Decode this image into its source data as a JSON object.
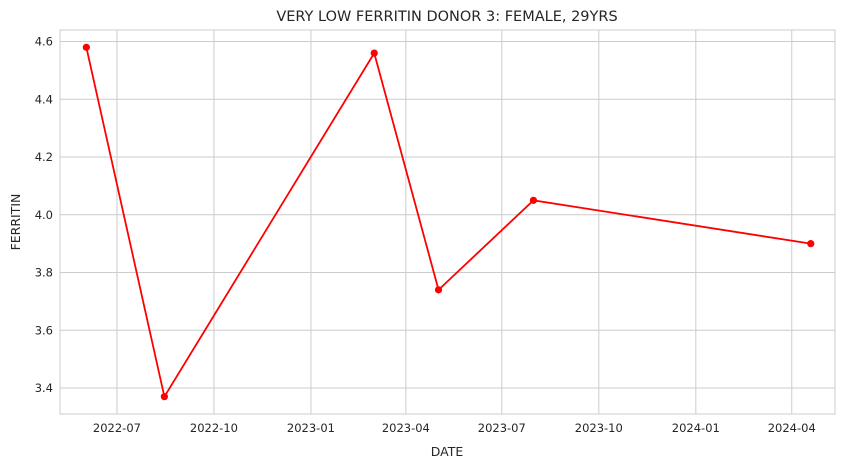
{
  "chart_data": {
    "type": "line",
    "title": "VERY LOW FERRITIN DONOR 3:   FEMALE, 29YRS",
    "xlabel": "DATE",
    "ylabel": "FERRITIN",
    "x": [
      "2022-06-02",
      "2022-08-15",
      "2023-03-02",
      "2023-05-02",
      "2023-07-31",
      "2024-04-19"
    ],
    "series": [
      {
        "values": [
          4.58,
          3.37,
          4.56,
          3.74,
          4.05,
          3.9
        ],
        "color": "#ff0000"
      }
    ],
    "xlim": [
      "2022-05-08",
      "2024-05-12"
    ],
    "ylim": [
      3.31,
      4.64
    ],
    "x_ticks": [
      "2022-07-01",
      "2022-10-01",
      "2023-01-01",
      "2023-04-01",
      "2023-07-01",
      "2023-10-01",
      "2024-01-01",
      "2024-04-01"
    ],
    "x_tick_labels": [
      "2022-07",
      "2022-10",
      "2023-01",
      "2023-04",
      "2023-07",
      "2023-10",
      "2024-01",
      "2024-04"
    ],
    "y_ticks": [
      3.4,
      3.6,
      3.8,
      4.0,
      4.2,
      4.4,
      4.6
    ],
    "y_tick_labels": [
      "3.4",
      "3.6",
      "3.8",
      "4.0",
      "4.2",
      "4.4",
      "4.6"
    ],
    "grid": true,
    "legend": false
  }
}
